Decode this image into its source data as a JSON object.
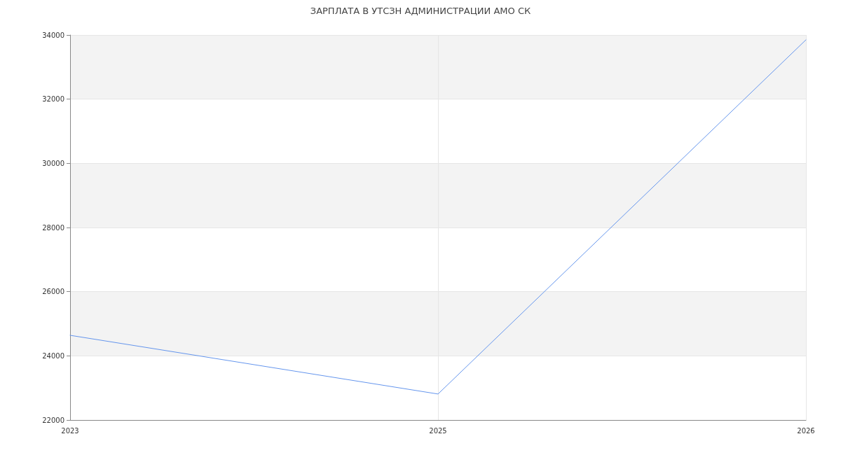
{
  "chart_data": {
    "type": "line",
    "title": "ЗАРПЛАТА В УТСЗН АДМИНИСТРАЦИИ АМО СК",
    "categories": [
      "2023",
      "2025",
      "2026"
    ],
    "series": [
      {
        "color": "#6495ed",
        "values": [
          24640,
          22810,
          33850
        ]
      }
    ],
    "ylim": [
      22000,
      34000
    ],
    "yticks": [
      22000,
      24000,
      26000,
      28000,
      30000,
      32000,
      34000
    ],
    "grid": true,
    "marker": "none",
    "line_style": "solid"
  }
}
